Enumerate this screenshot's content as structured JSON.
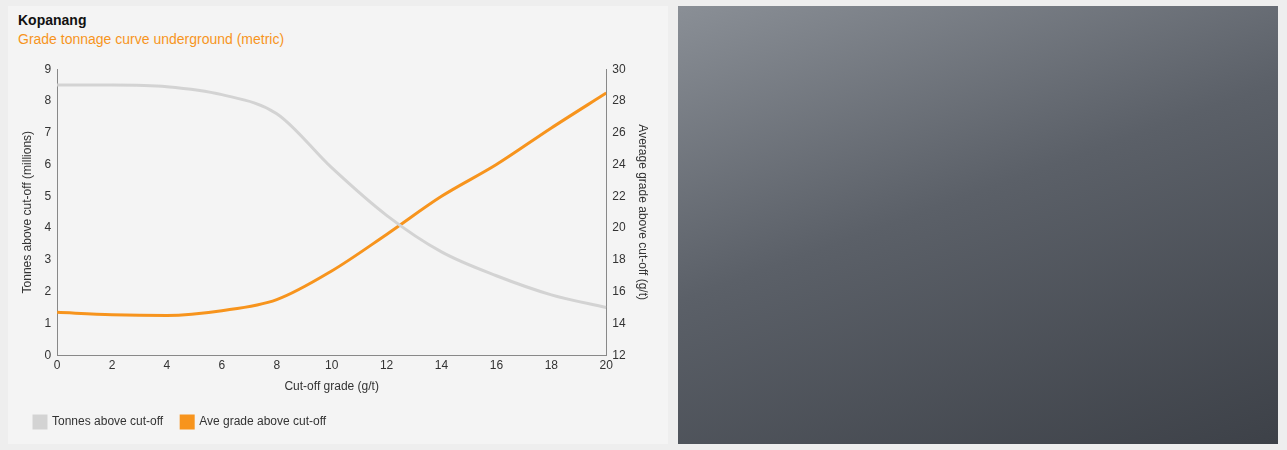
{
  "chart_data": {
    "type": "line",
    "title": "Kopanang",
    "subtitle": "Grade tonnage curve underground (metric)",
    "x_label": "Cut-off grade (g/t)",
    "y_label": "Tonnes above cut-off (millions)",
    "y2_label": "Average grade above cut-off (g/t)",
    "x": [
      0,
      2,
      4,
      6,
      8,
      10,
      12,
      14,
      16,
      18,
      20
    ],
    "series": [
      {
        "name": "Tonnes above cut-off",
        "color": "#d3d3d3",
        "values": [
          8.5,
          8.5,
          8.45,
          8.2,
          7.6,
          5.9,
          4.4,
          3.25,
          2.5,
          1.9,
          1.5
        ]
      },
      {
        "name": "Ave grade above cut-off",
        "color": "#f7941d",
        "axis": "y2",
        "values": [
          14.7,
          14.55,
          14.5,
          14.8,
          15.5,
          17.3,
          19.6,
          22.0,
          24.0,
          26.3,
          28.5
        ]
      }
    ],
    "xlim": [
      0,
      20
    ],
    "xticks": [
      0,
      2,
      4,
      6,
      8,
      10,
      12,
      14,
      16,
      18,
      20
    ],
    "ylim": [
      0,
      9
    ],
    "yticks": [
      0,
      1,
      2,
      3,
      4,
      5,
      6,
      7,
      8,
      9
    ],
    "y2lim": [
      12,
      30
    ],
    "y2ticks": [
      12,
      14,
      16,
      18,
      20,
      22,
      24,
      26,
      28,
      30
    ],
    "grid": false,
    "legend": "bottom left"
  }
}
